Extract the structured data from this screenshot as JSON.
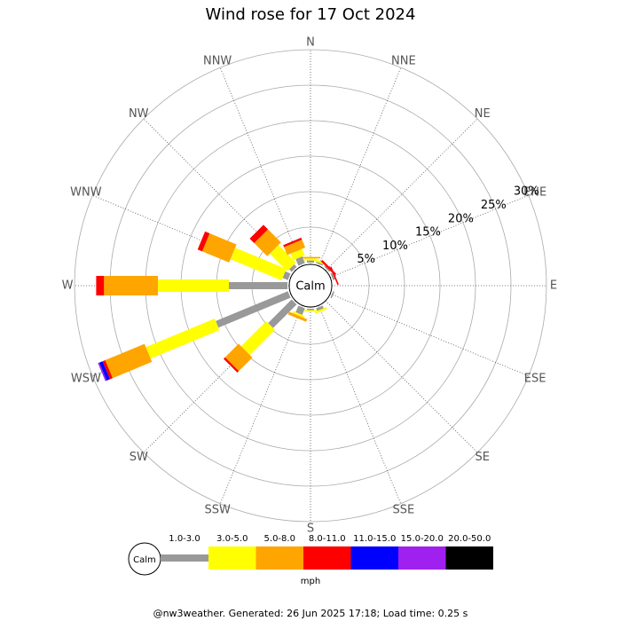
{
  "chart_data": {
    "type": "windrose",
    "title": "Wind rose for 17 Oct 2024",
    "categories": [
      "N",
      "NNE",
      "NE",
      "ENE",
      "E",
      "ESE",
      "SE",
      "SSE",
      "S",
      "SSW",
      "SW",
      "WSW",
      "W",
      "WNW",
      "NW",
      "NNW"
    ],
    "calm_label": "Calm",
    "unit": "mph",
    "rlim": [
      0,
      30
    ],
    "rticks": [
      {
        "value": 5,
        "label": "5%"
      },
      {
        "value": 10,
        "label": "10%"
      },
      {
        "value": 15,
        "label": "15%"
      },
      {
        "value": 20,
        "label": "20%"
      },
      {
        "value": 25,
        "label": "25%"
      },
      {
        "value": 30,
        "label": "30%"
      }
    ],
    "series": [
      {
        "name": "1.0-3.0",
        "color": "#999999",
        "values": [
          0.3,
          0.2,
          0.2,
          0.3,
          0,
          0.2,
          0,
          0.4,
          0.2,
          1.0,
          4.7,
          11,
          8.25,
          0.8,
          0.5,
          1.0
        ]
      },
      {
        "name": "3.0-5.0",
        "color": "#ffff00",
        "values": [
          0.3,
          0.3,
          0,
          0,
          0,
          0,
          0,
          0.3,
          0.2,
          0.3,
          5,
          10.5,
          10,
          7.8,
          3.5,
          1.0
        ]
      },
      {
        "name": "5.0-8.0",
        "color": "#ffa500",
        "values": [
          0.2,
          0,
          0,
          0,
          0,
          0,
          0,
          0,
          0,
          0.4,
          2.7,
          6,
          7.6,
          4.1,
          2.6,
          1.2
        ]
      },
      {
        "name": "8.0-11.0",
        "color": "#ff0000",
        "values": [
          0,
          0,
          0.3,
          0.2,
          0,
          0,
          0,
          0,
          0,
          0,
          0.3,
          0.4,
          1.1,
          0.7,
          0.9,
          0.3
        ]
      },
      {
        "name": "11.0-15.0",
        "color": "#0000ff",
        "values": [
          0,
          0,
          0,
          0,
          0,
          0,
          0,
          0,
          0,
          0,
          0,
          0.5,
          0,
          0,
          0,
          0
        ]
      },
      {
        "name": "15.0-20.0",
        "color": "#a020f0",
        "values": [
          0,
          0,
          0,
          0,
          0,
          0,
          0,
          0,
          0,
          0,
          0,
          0.2,
          0,
          0,
          0,
          0
        ]
      },
      {
        "name": "20.0-50.0",
        "color": "#000000",
        "values": [
          0,
          0,
          0,
          0,
          0,
          0,
          0,
          0,
          0,
          0,
          0,
          0,
          0,
          0,
          0,
          0
        ]
      }
    ],
    "footer": "@nw3weather. Generated: 26 Jun 2025 17:18; Load time: 0.25 s"
  }
}
